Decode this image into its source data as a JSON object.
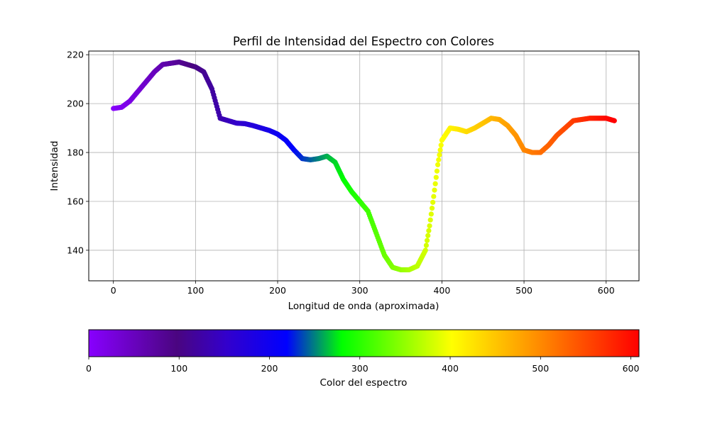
{
  "chart_data": [
    {
      "type": "scatter",
      "title": "Perfil de Intensidad del Espectro con Colores",
      "xlabel": "Longitud de onda (aproximada)",
      "ylabel": "Intensidad",
      "xlim": [
        -30,
        640
      ],
      "ylim": [
        127.5,
        221.5
      ],
      "xticks": [
        0,
        100,
        200,
        300,
        400,
        500,
        600
      ],
      "yticks": [
        140,
        160,
        180,
        200,
        220
      ],
      "grid": true,
      "colormap": "spectral-like (violet to red)",
      "series": [
        {
          "x": [
            0,
            10,
            20,
            30,
            40,
            50,
            60,
            70,
            80,
            90,
            100,
            110,
            120,
            130,
            140,
            150,
            160,
            170,
            180,
            190,
            200,
            210,
            220,
            230,
            240,
            250,
            260,
            270,
            280,
            290,
            300,
            310,
            320,
            330,
            340,
            350,
            360,
            370,
            380,
            385,
            390,
            395,
            400,
            410,
            420,
            430,
            440,
            450,
            460,
            470,
            480,
            490,
            500,
            510,
            520,
            530,
            540,
            550,
            560,
            570,
            580,
            590,
            600,
            610
          ],
          "values": [
            198,
            198.5,
            201,
            205,
            209,
            213,
            216,
            216.5,
            217,
            216,
            215,
            213,
            206,
            194,
            193,
            192,
            191.8,
            191,
            190,
            189,
            187.5,
            185,
            181,
            177.5,
            177,
            177.5,
            178.5,
            176,
            169,
            164,
            160,
            156,
            147,
            138,
            133,
            132,
            132,
            133.5,
            140,
            150,
            162,
            175,
            185,
            190,
            189.5,
            188.5,
            190,
            192,
            194,
            193.5,
            191,
            187,
            181,
            180,
            180,
            183,
            187,
            190,
            193,
            193.5,
            194,
            194,
            194,
            193
          ]
        }
      ]
    },
    {
      "type": "colorbar",
      "label": "Color del espectro",
      "range": [
        0,
        609
      ],
      "ticks": [
        0,
        100,
        200,
        300,
        400,
        500,
        600
      ],
      "colors": [
        {
          "t": 0.0,
          "c": "#8800ff"
        },
        {
          "t": 0.16,
          "c": "#4a0580"
        },
        {
          "t": 0.25,
          "c": "#3300cc"
        },
        {
          "t": 0.36,
          "c": "#0000ff"
        },
        {
          "t": 0.46,
          "c": "#00ff00"
        },
        {
          "t": 0.66,
          "c": "#ffff00"
        },
        {
          "t": 0.8,
          "c": "#ff9900"
        },
        {
          "t": 1.0,
          "c": "#ff0000"
        }
      ]
    }
  ]
}
